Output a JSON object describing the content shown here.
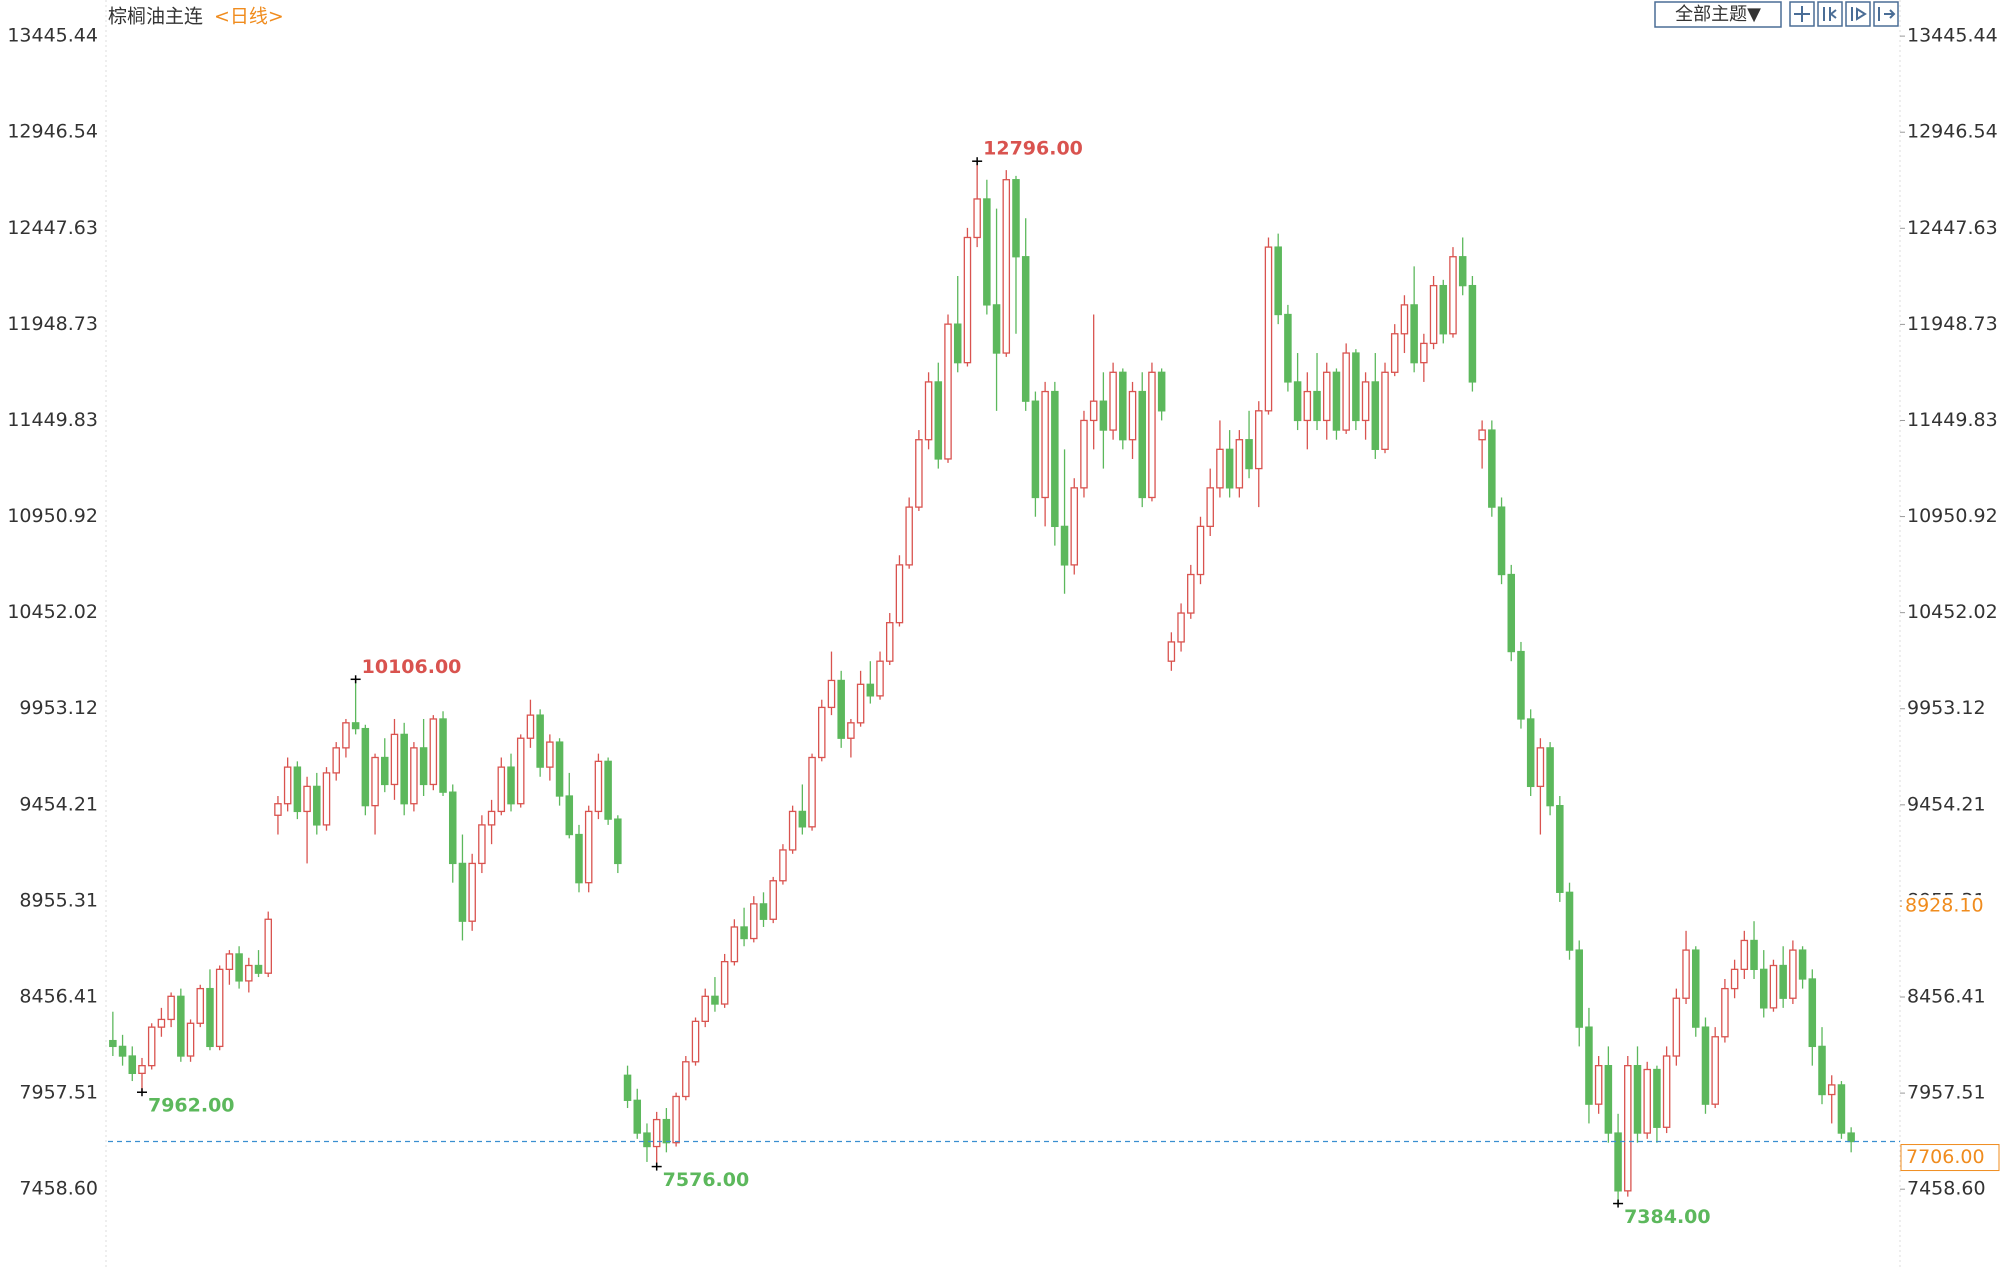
{
  "chart_data": {
    "type": "candlestick",
    "title": "棕榈油主连",
    "period": "<日线>",
    "theme_button": "全部主题▼",
    "up_color": "#d9534f",
    "down_color": "#5cb85c",
    "ylim": [
      7039,
      13498
    ],
    "yticks": [
      {
        "value": 7458.6,
        "label": "7458.60"
      },
      7957.51,
      8456.41,
      8955.31,
      9454.21,
      9953.12,
      10452.02,
      10950.92,
      11449.83,
      11948.73,
      12447.63,
      12946.54,
      13445.44
    ],
    "last_price": {
      "value": 7706,
      "label": "7706.00"
    },
    "right_marker": {
      "value": 8928.1,
      "label": "8928.10"
    },
    "high_marks": [
      {
        "value": 10106,
        "label": "10106.00"
      },
      {
        "value": 12796,
        "label": "12796.00"
      }
    ],
    "low_marks": [
      {
        "value": 7962,
        "label": "7962.00"
      },
      {
        "value": 7576,
        "label": "7576.00"
      },
      {
        "value": 7384,
        "label": "7384.00"
      }
    ],
    "ohlc": [
      [
        8230,
        8380,
        8150,
        8200
      ],
      [
        8200,
        8260,
        8100,
        8150
      ],
      [
        8150,
        8200,
        8020,
        8060
      ],
      [
        8060,
        8140,
        7962,
        8100
      ],
      [
        8100,
        8320,
        8080,
        8300
      ],
      [
        8300,
        8400,
        8250,
        8340
      ],
      [
        8340,
        8480,
        8300,
        8460
      ],
      [
        8460,
        8500,
        8120,
        8150
      ],
      [
        8150,
        8340,
        8120,
        8320
      ],
      [
        8320,
        8520,
        8300,
        8500
      ],
      [
        8500,
        8600,
        8180,
        8200
      ],
      [
        8200,
        8620,
        8180,
        8600
      ],
      [
        8600,
        8700,
        8520,
        8680
      ],
      [
        8680,
        8720,
        8500,
        8540
      ],
      [
        8540,
        8660,
        8480,
        8620
      ],
      [
        8620,
        8700,
        8560,
        8580
      ],
      [
        8580,
        8900,
        8560,
        8860
      ],
      [
        9400,
        9500,
        9300,
        9460
      ],
      [
        9460,
        9700,
        9420,
        9650
      ],
      [
        9650,
        9680,
        9380,
        9420
      ],
      [
        9420,
        9600,
        9150,
        9550
      ],
      [
        9550,
        9620,
        9300,
        9350
      ],
      [
        9350,
        9650,
        9320,
        9620
      ],
      [
        9620,
        9780,
        9580,
        9750
      ],
      [
        9750,
        9900,
        9700,
        9880
      ],
      [
        9880,
        10106,
        9820,
        9850
      ],
      [
        9850,
        9870,
        9400,
        9450
      ],
      [
        9450,
        9720,
        9300,
        9700
      ],
      [
        9700,
        9800,
        9520,
        9560
      ],
      [
        9560,
        9900,
        9480,
        9820
      ],
      [
        9820,
        9880,
        9400,
        9460
      ],
      [
        9460,
        9780,
        9420,
        9750
      ],
      [
        9750,
        9900,
        9500,
        9560
      ],
      [
        9560,
        9920,
        9530,
        9900
      ],
      [
        9900,
        9940,
        9500,
        9520
      ],
      [
        9520,
        9560,
        9050,
        9150
      ],
      [
        9150,
        9300,
        8750,
        8850
      ],
      [
        8850,
        9200,
        8800,
        9150
      ],
      [
        9150,
        9400,
        9100,
        9350
      ],
      [
        9350,
        9480,
        9250,
        9420
      ],
      [
        9420,
        9700,
        9400,
        9650
      ],
      [
        9650,
        9720,
        9420,
        9460
      ],
      [
        9460,
        9820,
        9440,
        9800
      ],
      [
        9800,
        10000,
        9750,
        9920
      ],
      [
        9920,
        9950,
        9600,
        9650
      ],
      [
        9650,
        9820,
        9580,
        9780
      ],
      [
        9780,
        9800,
        9450,
        9500
      ],
      [
        9500,
        9620,
        9280,
        9300
      ],
      [
        9300,
        9350,
        9000,
        9050
      ],
      [
        9050,
        9450,
        9000,
        9420
      ],
      [
        9420,
        9720,
        9380,
        9680
      ],
      [
        9680,
        9700,
        9350,
        9380
      ],
      [
        9380,
        9400,
        9100,
        9150
      ],
      [
        8050,
        8100,
        7880,
        7920
      ],
      [
        7920,
        7980,
        7720,
        7750
      ],
      [
        7750,
        7800,
        7600,
        7680
      ],
      [
        7680,
        7860,
        7576,
        7820
      ],
      [
        7820,
        7880,
        7650,
        7700
      ],
      [
        7700,
        7960,
        7680,
        7940
      ],
      [
        7940,
        8150,
        7920,
        8120
      ],
      [
        8120,
        8350,
        8100,
        8330
      ],
      [
        8330,
        8500,
        8300,
        8460
      ],
      [
        8460,
        8560,
        8380,
        8420
      ],
      [
        8420,
        8680,
        8400,
        8640
      ],
      [
        8640,
        8860,
        8620,
        8820
      ],
      [
        8820,
        8920,
        8720,
        8760
      ],
      [
        8760,
        8980,
        8740,
        8940
      ],
      [
        8940,
        9000,
        8820,
        8860
      ],
      [
        8860,
        9080,
        8840,
        9060
      ],
      [
        9060,
        9250,
        9040,
        9220
      ],
      [
        9220,
        9450,
        9200,
        9420
      ],
      [
        9420,
        9560,
        9300,
        9340
      ],
      [
        9340,
        9720,
        9320,
        9700
      ],
      [
        9700,
        10000,
        9680,
        9960
      ],
      [
        9960,
        10250,
        9920,
        10100
      ],
      [
        10100,
        10150,
        9750,
        9800
      ],
      [
        9800,
        9900,
        9700,
        9880
      ],
      [
        9880,
        10150,
        9860,
        10080
      ],
      [
        10080,
        10200,
        9980,
        10020
      ],
      [
        10020,
        10250,
        10000,
        10200
      ],
      [
        10200,
        10450,
        10180,
        10400
      ],
      [
        10400,
        10750,
        10380,
        10700
      ],
      [
        10700,
        11050,
        10680,
        11000
      ],
      [
        11000,
        11400,
        10980,
        11350
      ],
      [
        11350,
        11700,
        11300,
        11650
      ],
      [
        11650,
        11750,
        11200,
        11250
      ],
      [
        11250,
        12000,
        11230,
        11950
      ],
      [
        11950,
        12200,
        11700,
        11750
      ],
      [
        11750,
        12450,
        11730,
        12400
      ],
      [
        12400,
        12796,
        12350,
        12600
      ],
      [
        12600,
        12700,
        12000,
        12050
      ],
      [
        12050,
        12550,
        11500,
        11800
      ],
      [
        11800,
        12750,
        11780,
        12700
      ],
      [
        12700,
        12720,
        11900,
        12300
      ],
      [
        12300,
        12500,
        11500,
        11550
      ],
      [
        11550,
        11600,
        10950,
        11050
      ],
      [
        11050,
        11650,
        10900,
        11600
      ],
      [
        11600,
        11650,
        10800,
        10900
      ],
      [
        10900,
        11300,
        10550,
        10700
      ],
      [
        10700,
        11150,
        10650,
        11100
      ],
      [
        11100,
        11500,
        11050,
        11450
      ],
      [
        11450,
        12000,
        11300,
        11550
      ],
      [
        11550,
        11700,
        11200,
        11400
      ],
      [
        11400,
        11750,
        11350,
        11700
      ],
      [
        11700,
        11720,
        11300,
        11350
      ],
      [
        11350,
        11650,
        11250,
        11600
      ],
      [
        11600,
        11700,
        11000,
        11050
      ],
      [
        11050,
        11750,
        11030,
        11700
      ],
      [
        11700,
        11720,
        11450,
        11500
      ],
      [
        10200,
        10350,
        10150,
        10300
      ],
      [
        10300,
        10500,
        10250,
        10450
      ],
      [
        10450,
        10700,
        10420,
        10650
      ],
      [
        10650,
        10950,
        10600,
        10900
      ],
      [
        10900,
        11200,
        10850,
        11100
      ],
      [
        11100,
        11450,
        11050,
        11300
      ],
      [
        11300,
        11400,
        11050,
        11100
      ],
      [
        11100,
        11400,
        11050,
        11350
      ],
      [
        11350,
        11500,
        11150,
        11200
      ],
      [
        11200,
        11550,
        11000,
        11500
      ],
      [
        11500,
        12400,
        11480,
        12350
      ],
      [
        12350,
        12420,
        11950,
        12000
      ],
      [
        12000,
        12050,
        11600,
        11650
      ],
      [
        11650,
        11800,
        11400,
        11450
      ],
      [
        11450,
        11700,
        11300,
        11600
      ],
      [
        11600,
        11800,
        11400,
        11450
      ],
      [
        11450,
        11750,
        11350,
        11700
      ],
      [
        11700,
        11720,
        11350,
        11400
      ],
      [
        11400,
        11850,
        11380,
        11800
      ],
      [
        11800,
        11820,
        11400,
        11450
      ],
      [
        11450,
        11700,
        11350,
        11650
      ],
      [
        11650,
        11800,
        11250,
        11300
      ],
      [
        11300,
        11750,
        11280,
        11700
      ],
      [
        11700,
        11950,
        11680,
        11900
      ],
      [
        11900,
        12100,
        11800,
        12050
      ],
      [
        12050,
        12250,
        11700,
        11750
      ],
      [
        11750,
        11900,
        11650,
        11850
      ],
      [
        11850,
        12200,
        11820,
        12150
      ],
      [
        12150,
        12180,
        11850,
        11900
      ],
      [
        11900,
        12350,
        11880,
        12300
      ],
      [
        12300,
        12400,
        12100,
        12150
      ],
      [
        12150,
        12200,
        11600,
        11650
      ],
      [
        11350,
        11450,
        11200,
        11400
      ],
      [
        11400,
        11450,
        10950,
        11000
      ],
      [
        11000,
        11050,
        10600,
        10650
      ],
      [
        10650,
        10700,
        10200,
        10250
      ],
      [
        10250,
        10300,
        9850,
        9900
      ],
      [
        9900,
        9950,
        9500,
        9550
      ],
      [
        9550,
        9800,
        9300,
        9750
      ],
      [
        9750,
        9780,
        9400,
        9450
      ],
      [
        9450,
        9500,
        8950,
        9000
      ],
      [
        9000,
        9050,
        8650,
        8700
      ],
      [
        8700,
        8750,
        8200,
        8300
      ],
      [
        8300,
        8400,
        7800,
        7900
      ],
      [
        7900,
        8150,
        7850,
        8100
      ],
      [
        8100,
        8200,
        7700,
        7750
      ],
      [
        7750,
        7850,
        7384,
        7450
      ],
      [
        7450,
        8150,
        7420,
        8100
      ],
      [
        8100,
        8200,
        7700,
        7750
      ],
      [
        7750,
        8120,
        7720,
        8080
      ],
      [
        8080,
        8100,
        7700,
        7780
      ],
      [
        7780,
        8200,
        7750,
        8150
      ],
      [
        8150,
        8500,
        8100,
        8450
      ],
      [
        8450,
        8800,
        8420,
        8700
      ],
      [
        8700,
        8720,
        8250,
        8300
      ],
      [
        8300,
        8350,
        7850,
        7900
      ],
      [
        7900,
        8300,
        7880,
        8250
      ],
      [
        8250,
        8550,
        8220,
        8500
      ],
      [
        8500,
        8650,
        8450,
        8600
      ],
      [
        8600,
        8800,
        8550,
        8750
      ],
      [
        8750,
        8850,
        8550,
        8600
      ],
      [
        8600,
        8700,
        8350,
        8400
      ],
      [
        8400,
        8650,
        8380,
        8620
      ],
      [
        8620,
        8720,
        8400,
        8450
      ],
      [
        8450,
        8750,
        8420,
        8700
      ],
      [
        8700,
        8720,
        8500,
        8550
      ],
      [
        8550,
        8600,
        8100,
        8200
      ],
      [
        8200,
        8300,
        7900,
        7950
      ],
      [
        7950,
        8050,
        7800,
        8000
      ],
      [
        8000,
        8020,
        7720,
        7750
      ],
      [
        7750,
        7780,
        7650,
        7706
      ]
    ]
  }
}
